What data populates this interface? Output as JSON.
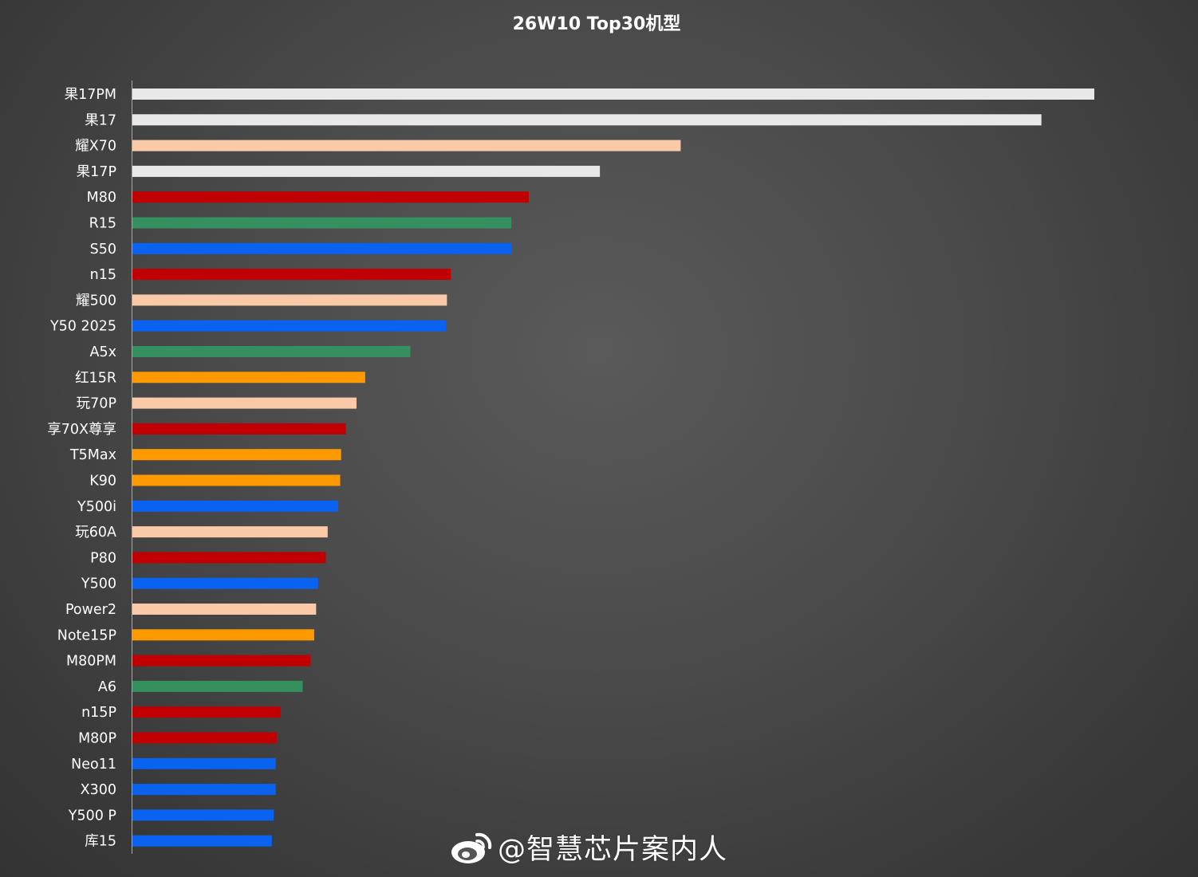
{
  "chart_data": {
    "type": "bar",
    "orientation": "horizontal",
    "title": "26W10 Top30机型",
    "xlabel": "",
    "ylabel": "",
    "grid": false,
    "legend": "none",
    "xlim": [
      0,
      100
    ],
    "categories": [
      "果17PM",
      "果17",
      "耀X70",
      "果17P",
      "M80",
      "R15",
      "S50",
      "n15",
      "耀500",
      "Y50 2025",
      "A5x",
      "红15R",
      "玩70P",
      "享70X尊享",
      "T5Max",
      "K90",
      "Y500i",
      "玩60A",
      "P80",
      "Y500",
      "Power2",
      "Note15P",
      "M80PM",
      "A6",
      "n15P",
      "M80P",
      "Neo11",
      "X300",
      "Y500 P",
      "库15"
    ],
    "values": [
      100,
      94.5,
      57,
      48.6,
      41.2,
      39.4,
      39.4,
      33.1,
      32.7,
      32.6,
      28.9,
      24.2,
      23.3,
      22.2,
      21.7,
      21.6,
      21.4,
      20.3,
      20.1,
      19.3,
      19.1,
      18.9,
      18.5,
      17.7,
      15.4,
      15.0,
      14.9,
      14.9,
      14.7,
      14.5
    ],
    "colors": [
      "#e8e8e8",
      "#e8e8e8",
      "#f9c9a8",
      "#e8e8e8",
      "#c00000",
      "#34905f",
      "#0a62f0",
      "#c00000",
      "#f9c9a8",
      "#0a62f0",
      "#34905f",
      "#ff9900",
      "#f9c9a8",
      "#c00000",
      "#ff9900",
      "#ff9900",
      "#0a62f0",
      "#f9c9a8",
      "#c00000",
      "#0a62f0",
      "#f9c9a8",
      "#ff9900",
      "#c00000",
      "#34905f",
      "#c00000",
      "#c00000",
      "#0a62f0",
      "#0a62f0",
      "#0a62f0",
      "#0a62f0"
    ]
  },
  "watermark": {
    "text": "@智慧芯片案内人",
    "icon": "weibo-logo-icon"
  }
}
